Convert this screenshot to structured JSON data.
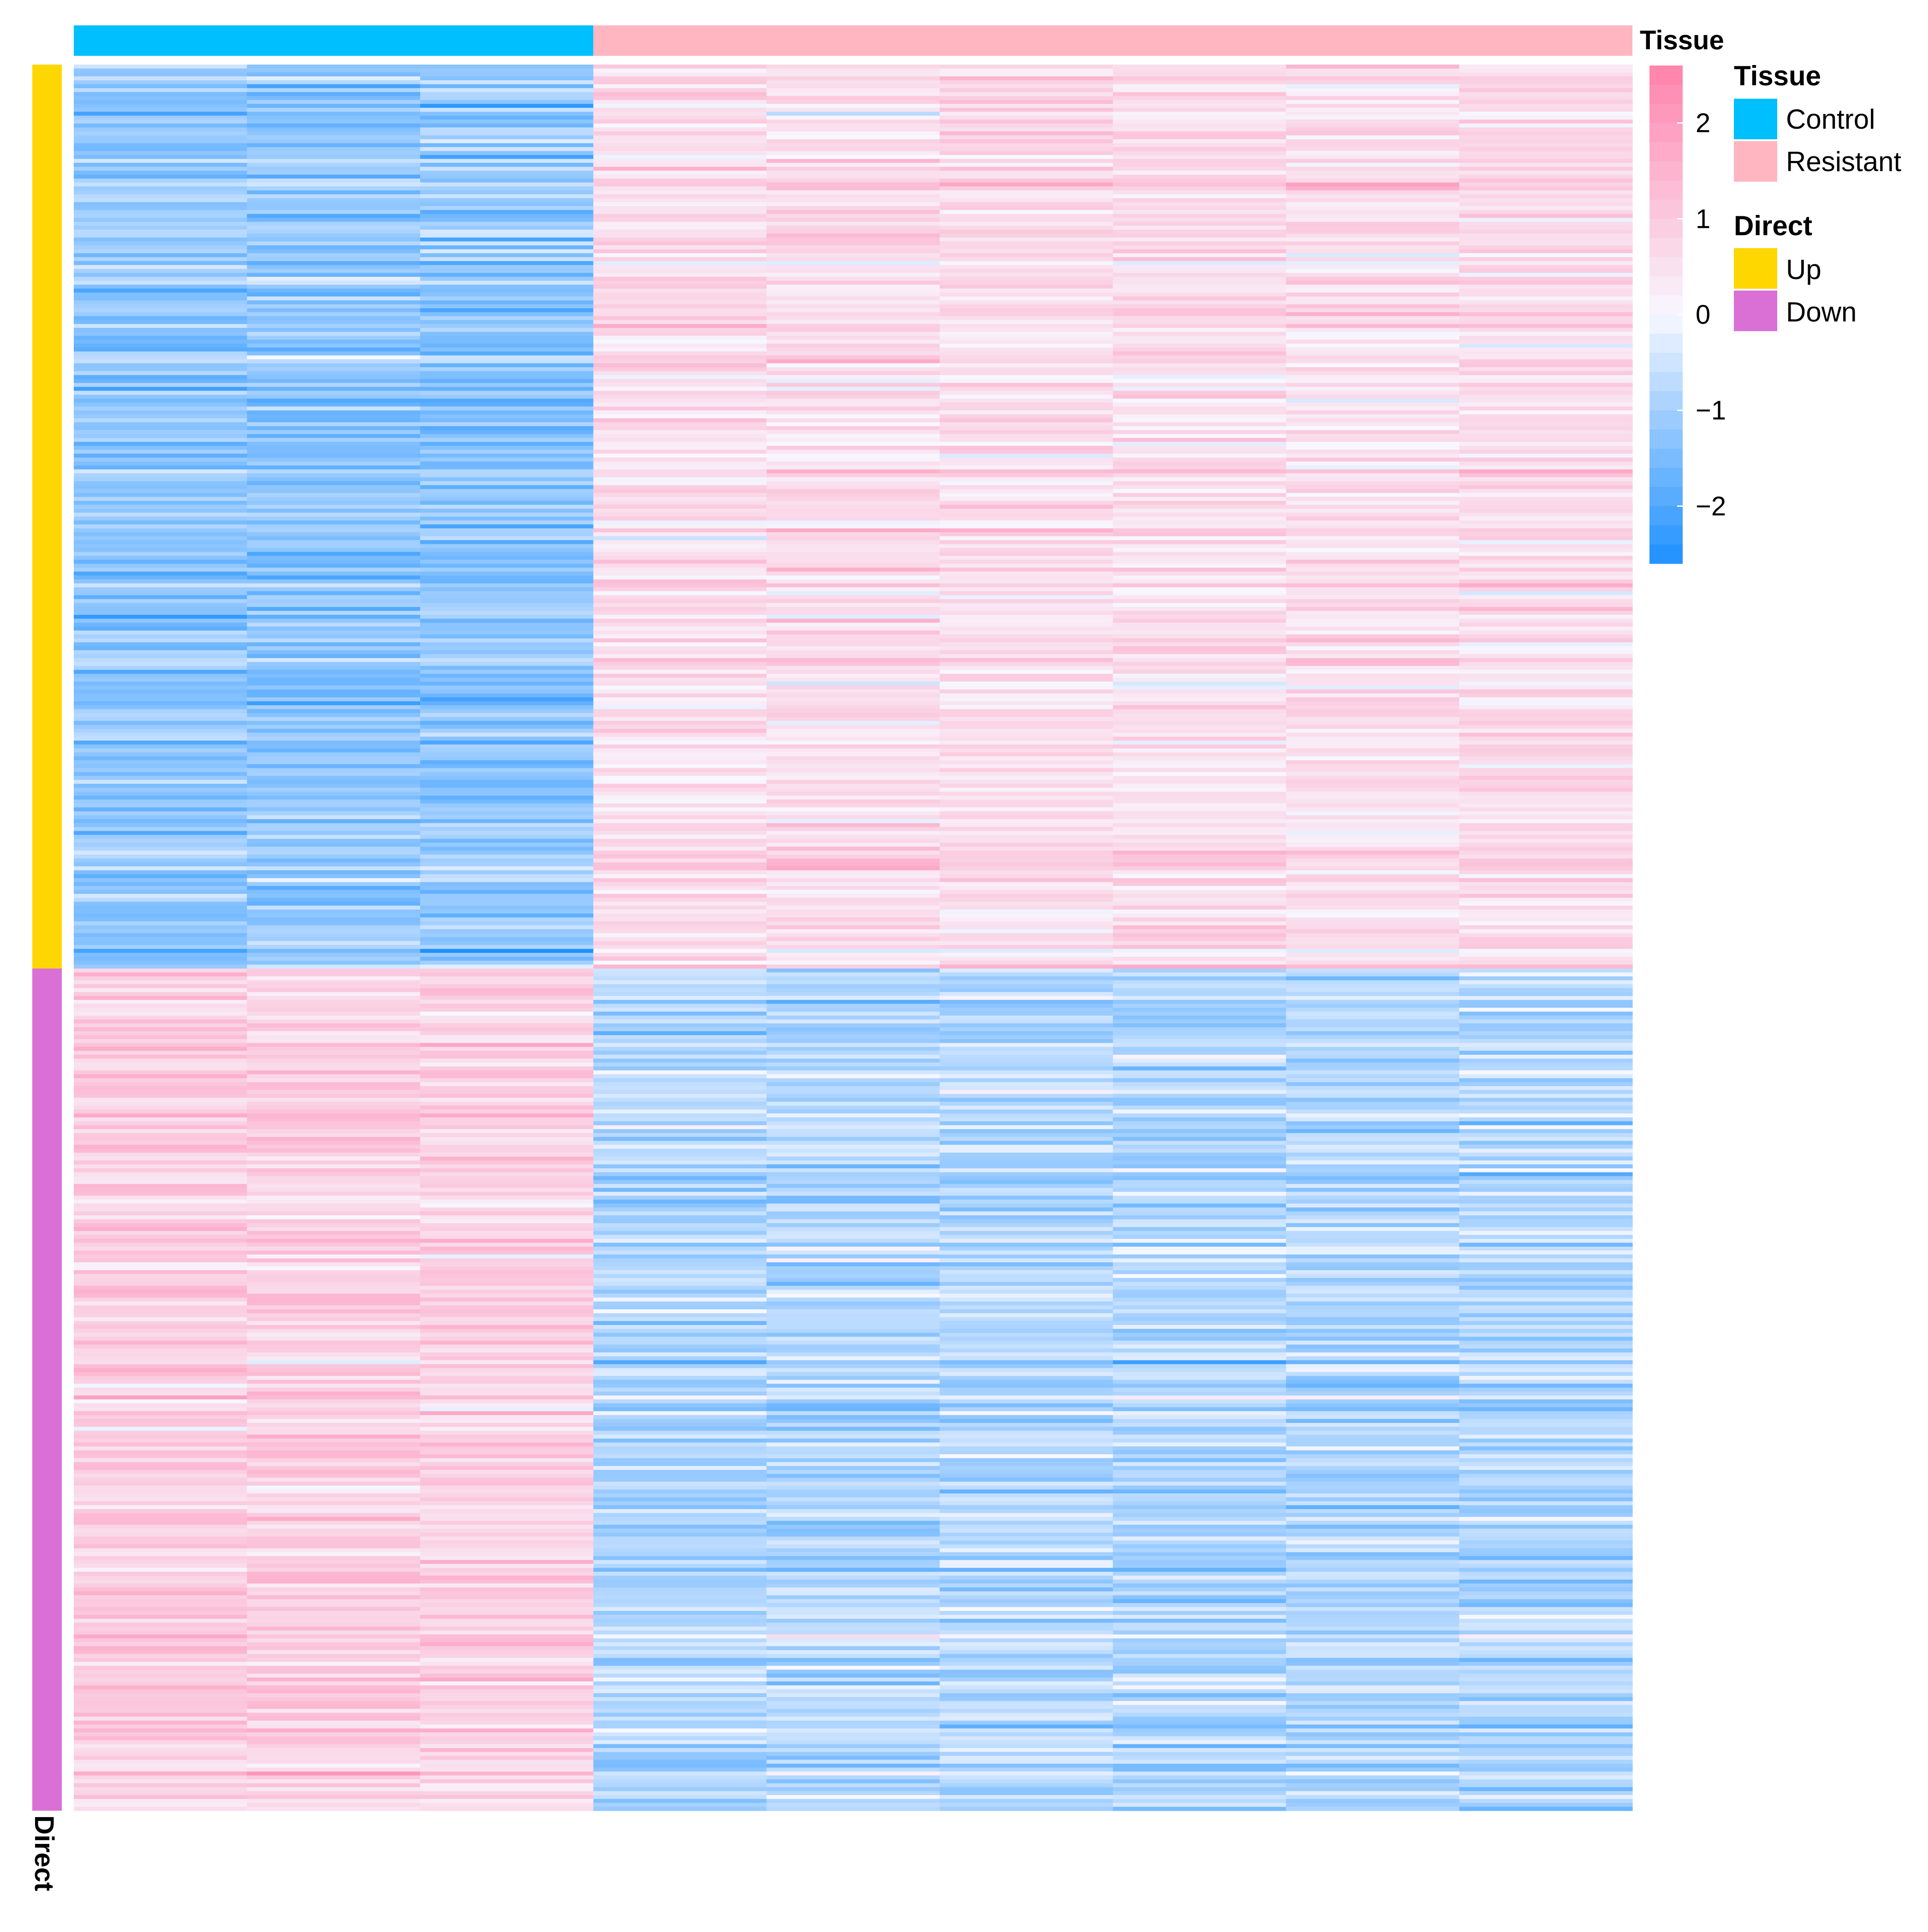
{
  "chart_data": {
    "type": "heatmap",
    "value_range": [
      -2.6,
      2.6
    ],
    "color_scale": {
      "low": "#1e90ff",
      "mid": "#f8f8ff",
      "high": "#ff82ab",
      "ticks": [
        2,
        1,
        0,
        -1,
        -2
      ],
      "tick_labels": [
        "2",
        "1",
        "0",
        "−1",
        "−2"
      ]
    },
    "columns": {
      "count": 9,
      "groups": [
        {
          "name": "Control",
          "count": 3
        },
        {
          "name": "Resistant",
          "count": 6
        }
      ]
    },
    "rows": {
      "groups": [
        {
          "name": "Up",
          "count": 230,
          "control_mean": -1.2,
          "resistant_mean": 0.6
        },
        {
          "name": "Down",
          "count": 215,
          "control_mean": 0.9,
          "resistant_mean": -0.8
        }
      ]
    },
    "column_annotation": {
      "title": "Tissue",
      "colors": {
        "Control": "#00bfff",
        "Resistant": "#ffb6c1"
      }
    },
    "row_annotation": {
      "title": "Direct",
      "colors": {
        "Up": "#ffd700",
        "Down": "#da70d6"
      }
    },
    "legends": [
      {
        "title": "Tissue",
        "entries": [
          {
            "label": "Control",
            "color": "#00bfff"
          },
          {
            "label": "Resistant",
            "color": "#ffb6c1"
          }
        ]
      },
      {
        "title": "Direct",
        "entries": [
          {
            "label": "Up",
            "color": "#ffd700"
          },
          {
            "label": "Down",
            "color": "#da70d6"
          }
        ]
      }
    ]
  }
}
